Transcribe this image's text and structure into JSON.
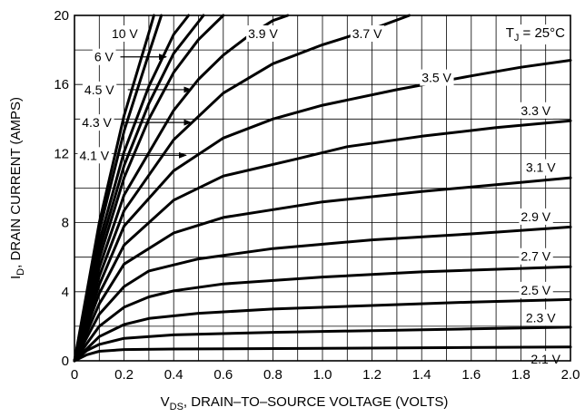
{
  "chart_data": {
    "type": "line",
    "xlabel": {
      "main": "V",
      "sub": "DS",
      "rest": ", DRAIN–TO–SOURCE VOLTAGE (VOLTS)"
    },
    "ylabel": {
      "main": "I",
      "sub": "D",
      "rest": ", DRAIN CURRENT (AMPS)"
    },
    "annotation": {
      "main": "T",
      "sub": "J",
      "rest": " = 25°C"
    },
    "xlim": [
      0,
      2.0
    ],
    "ylim": [
      0,
      20
    ],
    "x_ticks": [
      "0",
      "0.2",
      "0.4",
      "0.6",
      "0.8",
      "1.0",
      "1.2",
      "1.4",
      "1.6",
      "1.8",
      "2.0"
    ],
    "y_ticks": [
      "0",
      "4",
      "8",
      "12",
      "16",
      "20"
    ],
    "grid": true,
    "series": [
      {
        "name": "2.1 V",
        "points": [
          [
            0,
            0
          ],
          [
            0.05,
            0.35
          ],
          [
            0.1,
            0.55
          ],
          [
            0.2,
            0.65
          ],
          [
            0.4,
            0.68
          ],
          [
            1.0,
            0.72
          ],
          [
            1.5,
            0.76
          ],
          [
            2.0,
            0.8
          ]
        ]
      },
      {
        "name": "2.3 V",
        "points": [
          [
            0,
            0
          ],
          [
            0.05,
            0.6
          ],
          [
            0.1,
            0.95
          ],
          [
            0.2,
            1.3
          ],
          [
            0.4,
            1.5
          ],
          [
            0.8,
            1.65
          ],
          [
            1.2,
            1.75
          ],
          [
            1.6,
            1.85
          ],
          [
            2.0,
            1.95
          ]
        ]
      },
      {
        "name": "2.5 V",
        "points": [
          [
            0,
            0
          ],
          [
            0.1,
            1.4
          ],
          [
            0.2,
            2.1
          ],
          [
            0.3,
            2.45
          ],
          [
            0.5,
            2.75
          ],
          [
            0.8,
            3.0
          ],
          [
            1.2,
            3.2
          ],
          [
            1.6,
            3.4
          ],
          [
            2.0,
            3.55
          ]
        ]
      },
      {
        "name": "2.7 V",
        "points": [
          [
            0,
            0
          ],
          [
            0.1,
            2.0
          ],
          [
            0.2,
            3.1
          ],
          [
            0.3,
            3.7
          ],
          [
            0.4,
            4.05
          ],
          [
            0.6,
            4.45
          ],
          [
            1.0,
            4.85
          ],
          [
            1.4,
            5.15
          ],
          [
            2.0,
            5.45
          ]
        ]
      },
      {
        "name": "2.9 V",
        "points": [
          [
            0,
            0
          ],
          [
            0.1,
            2.7
          ],
          [
            0.2,
            4.3
          ],
          [
            0.3,
            5.2
          ],
          [
            0.5,
            5.9
          ],
          [
            0.8,
            6.5
          ],
          [
            1.2,
            7.0
          ],
          [
            1.6,
            7.35
          ],
          [
            2.0,
            7.75
          ]
        ]
      },
      {
        "name": "3.1 V",
        "points": [
          [
            0,
            0
          ],
          [
            0.1,
            3.3
          ],
          [
            0.2,
            5.6
          ],
          [
            0.4,
            7.4
          ],
          [
            0.6,
            8.3
          ],
          [
            1.0,
            9.2
          ],
          [
            1.4,
            9.8
          ],
          [
            1.7,
            10.2
          ],
          [
            2.0,
            10.6
          ]
        ]
      },
      {
        "name": "3.3 V",
        "points": [
          [
            0,
            0
          ],
          [
            0.1,
            3.9
          ],
          [
            0.2,
            6.7
          ],
          [
            0.4,
            9.3
          ],
          [
            0.6,
            10.7
          ],
          [
            0.9,
            11.7
          ],
          [
            1.1,
            12.4
          ],
          [
            1.4,
            13.0
          ],
          [
            1.7,
            13.5
          ],
          [
            2.0,
            13.9
          ]
        ]
      },
      {
        "name": "3.5 V",
        "points": [
          [
            0,
            0
          ],
          [
            0.1,
            4.4
          ],
          [
            0.2,
            7.8
          ],
          [
            0.4,
            11.0
          ],
          [
            0.6,
            12.9
          ],
          [
            0.8,
            14.0
          ],
          [
            1.0,
            14.8
          ],
          [
            1.3,
            15.7
          ],
          [
            1.6,
            16.5
          ],
          [
            1.8,
            17.0
          ],
          [
            2.0,
            17.4
          ]
        ]
      },
      {
        "name": "3.7 V",
        "points": [
          [
            0,
            0
          ],
          [
            0.1,
            4.9
          ],
          [
            0.2,
            8.7
          ],
          [
            0.4,
            12.8
          ],
          [
            0.6,
            15.5
          ],
          [
            0.8,
            17.2
          ],
          [
            1.0,
            18.3
          ],
          [
            1.2,
            19.2
          ],
          [
            1.35,
            20.0
          ]
        ]
      },
      {
        "name": "3.9 V",
        "points": [
          [
            0,
            0
          ],
          [
            0.1,
            5.4
          ],
          [
            0.2,
            9.6
          ],
          [
            0.4,
            14.5
          ],
          [
            0.5,
            16.3
          ],
          [
            0.6,
            17.7
          ],
          [
            0.7,
            18.8
          ],
          [
            0.8,
            19.7
          ],
          [
            0.86,
            20.0
          ]
        ]
      },
      {
        "name": "4.1 V",
        "points": [
          [
            0,
            0
          ],
          [
            0.1,
            5.9
          ],
          [
            0.2,
            10.6
          ],
          [
            0.3,
            14.0
          ],
          [
            0.4,
            16.7
          ],
          [
            0.5,
            18.6
          ],
          [
            0.6,
            20.0
          ]
        ]
      },
      {
        "name": "4.3 V",
        "points": [
          [
            0,
            0
          ],
          [
            0.1,
            6.4
          ],
          [
            0.2,
            11.3
          ],
          [
            0.3,
            14.9
          ],
          [
            0.4,
            17.8
          ],
          [
            0.52,
            20.0
          ]
        ]
      },
      {
        "name": "4.5 V",
        "points": [
          [
            0,
            0
          ],
          [
            0.1,
            6.9
          ],
          [
            0.2,
            12.1
          ],
          [
            0.3,
            15.9
          ],
          [
            0.4,
            18.9
          ],
          [
            0.46,
            20.0
          ]
        ]
      },
      {
        "name": "6 V",
        "points": [
          [
            0,
            0
          ],
          [
            0.1,
            7.5
          ],
          [
            0.2,
            13.3
          ],
          [
            0.3,
            17.8
          ],
          [
            0.35,
            20.0
          ]
        ]
      },
      {
        "name": "10 V",
        "points": [
          [
            0,
            0
          ],
          [
            0.1,
            8.0
          ],
          [
            0.2,
            14.2
          ],
          [
            0.3,
            19.0
          ],
          [
            0.32,
            20.0
          ]
        ]
      }
    ],
    "labels": [
      {
        "text": "2.1 V",
        "x": 1.84,
        "y": 0.1,
        "anchor": "start"
      },
      {
        "text": "2.3 V",
        "x": 1.82,
        "y": 2.5,
        "anchor": "start"
      },
      {
        "text": "2.5 V",
        "x": 1.8,
        "y": 4.1,
        "anchor": "start"
      },
      {
        "text": "2.7 V",
        "x": 1.8,
        "y": 6.05,
        "anchor": "start"
      },
      {
        "text": "2.9 V",
        "x": 1.8,
        "y": 8.35,
        "anchor": "start"
      },
      {
        "text": "3.1 V",
        "x": 1.82,
        "y": 11.2,
        "anchor": "start"
      },
      {
        "text": "3.3 V",
        "x": 1.8,
        "y": 14.5,
        "anchor": "start"
      },
      {
        "text": "3.5 V",
        "x": 1.4,
        "y": 16.4,
        "anchor": "start"
      },
      {
        "text": "3.7 V",
        "x": 1.12,
        "y": 18.95,
        "anchor": "start"
      },
      {
        "text": "3.9 V",
        "x": 0.7,
        "y": 18.95,
        "anchor": "start"
      },
      {
        "text": "10 V",
        "x": 0.15,
        "y": 18.95,
        "anchor": "start"
      },
      {
        "text": "6 V",
        "x": 0.08,
        "y": 17.6,
        "anchor": "start"
      },
      {
        "text": "4.5 V",
        "x": 0.04,
        "y": 15.7,
        "anchor": "start"
      },
      {
        "text": "4.3 V",
        "x": 0.03,
        "y": 13.8,
        "anchor": "start"
      },
      {
        "text": "4.1 V",
        "x": 0.02,
        "y": 11.9,
        "anchor": "start"
      }
    ],
    "pointers": [
      {
        "x1": 0.185,
        "y1": 17.6,
        "x2": 0.37,
        "y2": 17.6
      },
      {
        "x1": 0.215,
        "y1": 15.7,
        "x2": 0.47,
        "y2": 15.7
      },
      {
        "x1": 0.19,
        "y1": 13.8,
        "x2": 0.47,
        "y2": 13.8
      },
      {
        "x1": 0.17,
        "y1": 11.9,
        "x2": 0.45,
        "y2": 11.9
      }
    ]
  }
}
